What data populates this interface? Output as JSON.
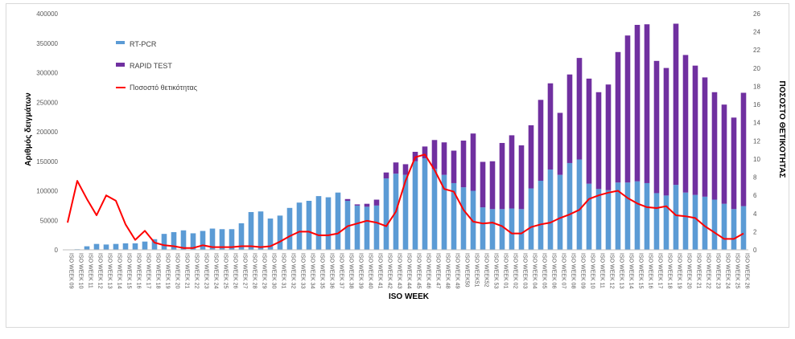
{
  "chart_data": {
    "type": "bar",
    "xlabel": "ISO WEEK",
    "ylabel": "Αριθμός δειγμάτων",
    "y2label": "ΠΟΣΟΣΤΟ ΘΕΤΙΚΟΤΗΤΑΣ",
    "ylim": [
      0,
      400000
    ],
    "yticks": [
      "0",
      "50000",
      "100000",
      "150000",
      "200000",
      "250000",
      "300000",
      "350000",
      "400000"
    ],
    "y2lim": [
      0,
      26
    ],
    "y2ticks": [
      "0",
      "2",
      "4",
      "6",
      "8",
      "10",
      "12",
      "14",
      "16",
      "18",
      "20",
      "22",
      "24",
      "26"
    ],
    "legend_position": "top-left",
    "grid": false,
    "stacked": true,
    "categories": [
      "ISO WEEK 09",
      "ISO WEEK 10",
      "ISO WEEK 11",
      "ISO WEEK 12",
      "ISO WEEK 13",
      "ISO WEEK 14",
      "ISO WEEK 15",
      "ISO WEEK 16",
      "ISO WEEK 17",
      "ISO WEEK 18",
      "ISO WEEK 19",
      "ISO WEEK 20",
      "ISO WEEK 21",
      "ISO WEEK 22",
      "ISO WEEK 23",
      "ISO WEEK 24",
      "ISO WEEK 25",
      "ISO WEEK 26",
      "ISO WEEK 27",
      "ISO WEEK 28",
      "ISO WEEK 29",
      "ISO WEEK 30",
      "ISO WEEK 31",
      "ISO WEEK 32",
      "ISO WEEK 33",
      "ISO WEEK 34",
      "ISO WEEK 35",
      "ISO WEEK 36",
      "ISO WEEK 37",
      "ISO WEEK 38",
      "ISO WEEK 39",
      "ISO WEEK 40",
      "ISO WEEK 41",
      "ISO WEEK 42",
      "ISO WEEK 43",
      "ISO WEEK 44",
      "ISO WEEK 45",
      "ISO WEEK 46",
      "ISO WEEK 47",
      "ISO WEEK 48",
      "ISO WEEK 49",
      "ISO WEEK50",
      "ISO WEEK51",
      "ISO WEEK52",
      "ISO WEEK 53",
      "ISO WEEK 01",
      "ISO WEEK 02",
      "ISO WEEK 03",
      "ISO WEEK 04",
      "ISO WEEK 05",
      "ISO WEEK 06",
      "ISO WEEK 07",
      "ISO WEEK 08",
      "ISO WEEK 09",
      "ISO WEEK 10",
      "ISO WEEK 11",
      "ISO WEEK 12",
      "ISO WEEK 13",
      "ISO WEEK 14",
      "ISO WEEK 15",
      "ISO WEEK 16",
      "ISO WEEK 17",
      "ISO WEEK 18",
      "ISO WEEK 19",
      "ISO WEEK 20",
      "ISO WEEK 21",
      "ISO WEEK 22",
      "ISO WEEK 23",
      "ISO WEEK 24",
      "ISO WEEK 25",
      "ISO WEEK 26"
    ],
    "series": [
      {
        "name": "RT-PCR",
        "type": "bar",
        "color": "#5b9bd5",
        "axis": "left",
        "values": [
          500,
          1000,
          6000,
          10000,
          9000,
          10000,
          11000,
          11000,
          14000,
          18000,
          27000,
          30000,
          33000,
          28000,
          32000,
          36000,
          35000,
          35000,
          45000,
          64000,
          65000,
          53000,
          58000,
          71000,
          80000,
          83000,
          91000,
          89000,
          97000,
          83000,
          75000,
          73000,
          75000,
          121000,
          129000,
          127000,
          150000,
          155000,
          137000,
          127000,
          113000,
          106000,
          100000,
          72000,
          69000,
          69000,
          70000,
          69000,
          104000,
          117000,
          136000,
          127000,
          147000,
          153000,
          112000,
          103000,
          101000,
          114000,
          114000,
          116000,
          113000,
          96000,
          92000,
          110000,
          97000,
          93000,
          90000,
          85000,
          78000,
          69000,
          74000
        ]
      },
      {
        "name": "RAPID TEST",
        "type": "bar",
        "color": "#7030a0",
        "axis": "left",
        "values": [
          0,
          0,
          0,
          0,
          0,
          0,
          0,
          0,
          0,
          0,
          0,
          0,
          0,
          0,
          0,
          0,
          0,
          0,
          0,
          0,
          0,
          0,
          0,
          0,
          0,
          0,
          0,
          0,
          0,
          3000,
          2000,
          5000,
          10000,
          10000,
          19000,
          18000,
          16000,
          20000,
          49000,
          55000,
          55000,
          79000,
          97000,
          77000,
          81000,
          112000,
          124000,
          108000,
          107000,
          137000,
          146000,
          105000,
          150000,
          172000,
          178000,
          164000,
          179000,
          221000,
          249000,
          265000,
          269000,
          224000,
          216000,
          273000,
          233000,
          219000,
          202000,
          182000,
          168000,
          155000,
          192000
        ]
      },
      {
        "name": "Ποσοστό θετικότητας",
        "type": "line",
        "color": "#ff0000",
        "axis": "right",
        "values": [
          3.0,
          7.6,
          5.6,
          3.8,
          6.0,
          5.4,
          2.8,
          1.1,
          2.1,
          0.8,
          0.5,
          0.4,
          0.2,
          0.2,
          0.5,
          0.3,
          0.3,
          0.3,
          0.4,
          0.4,
          0.3,
          0.4,
          0.9,
          1.5,
          2.0,
          2.0,
          1.6,
          1.6,
          1.8,
          2.6,
          2.9,
          3.2,
          3.0,
          2.6,
          4.2,
          7.6,
          10.2,
          10.5,
          8.8,
          6.7,
          6.4,
          4.4,
          3.1,
          2.9,
          3.0,
          2.6,
          1.8,
          1.8,
          2.5,
          2.8,
          3.0,
          3.5,
          3.9,
          4.4,
          5.6,
          6.0,
          6.3,
          6.5,
          5.7,
          5.1,
          4.7,
          4.6,
          4.8,
          3.8,
          3.7,
          3.5,
          2.6,
          1.9,
          1.2,
          1.2,
          1.8
        ]
      }
    ]
  }
}
